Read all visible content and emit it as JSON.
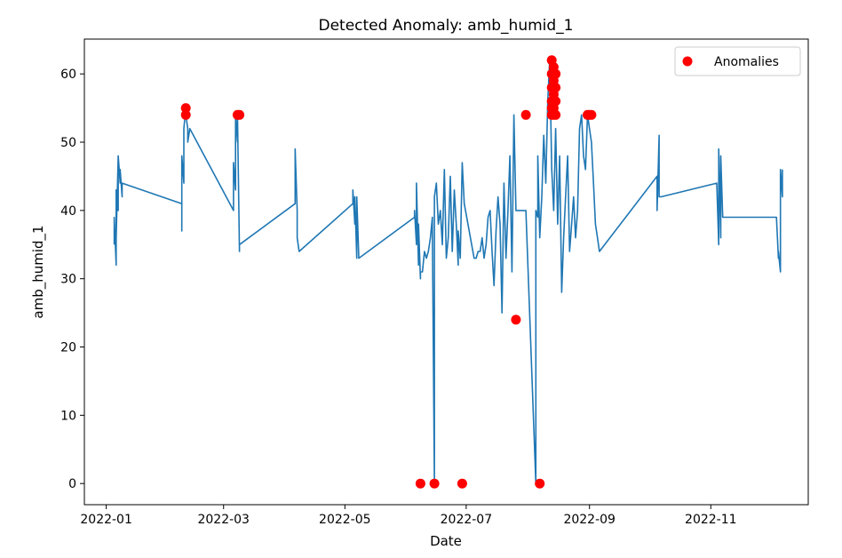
{
  "chart_data": {
    "type": "line",
    "title": "Detected Anomaly: amb_humid_1",
    "xlabel": "Date",
    "ylabel": "amb_humid_1",
    "xlim": [
      "2021-12-21",
      "2022-12-20"
    ],
    "ylim": [
      -3.1,
      65.1
    ],
    "x_ticks": [
      "2022-01-01",
      "2022-03-01",
      "2022-05-01",
      "2022-07-01",
      "2022-09-01",
      "2022-11-01"
    ],
    "x_tick_labels": [
      "2022-01",
      "2022-03",
      "2022-05",
      "2022-07",
      "2022-09",
      "2022-11"
    ],
    "y_ticks": [
      0,
      10,
      20,
      30,
      40,
      50,
      60
    ],
    "grid": false,
    "legend": {
      "position": "top-right",
      "entries": [
        "Anomalies"
      ]
    },
    "colors": {
      "line": "#1f77b4",
      "anomaly": "#ff0000"
    },
    "series": [
      {
        "type": "line",
        "x": [
          "2022-01-05",
          "2022-01-05",
          "2022-01-06",
          "2022-01-06",
          "2022-01-06",
          "2022-01-07",
          "2022-01-07",
          "2022-01-07",
          "2022-01-08",
          "2022-01-08",
          "2022-01-09",
          "2022-01-09",
          "2022-02-08",
          "2022-02-08",
          "2022-02-08",
          "2022-02-09",
          "2022-02-09",
          "2022-02-10",
          "2022-02-10",
          "2022-02-11",
          "2022-02-11",
          "2022-02-12",
          "2022-03-06",
          "2022-03-06",
          "2022-03-07",
          "2022-03-07",
          "2022-03-08",
          "2022-03-08",
          "2022-03-09",
          "2022-03-09",
          "2022-04-06",
          "2022-04-06",
          "2022-04-07",
          "2022-04-07",
          "2022-04-08",
          "2022-05-05",
          "2022-05-05",
          "2022-05-06",
          "2022-05-06",
          "2022-05-07",
          "2022-05-07",
          "2022-05-08",
          "2022-06-05",
          "2022-06-05",
          "2022-06-06",
          "2022-06-06",
          "2022-06-07",
          "2022-06-07",
          "2022-06-08",
          "2022-06-08",
          "2022-06-09",
          "2022-06-10",
          "2022-06-11",
          "2022-06-12",
          "2022-06-13",
          "2022-06-14",
          "2022-06-14",
          "2022-06-15",
          "2022-06-15",
          "2022-06-16",
          "2022-06-17",
          "2022-06-18",
          "2022-06-19",
          "2022-06-20",
          "2022-06-21",
          "2022-06-22",
          "2022-06-23",
          "2022-06-24",
          "2022-06-25",
          "2022-06-26",
          "2022-06-27",
          "2022-06-27",
          "2022-06-28",
          "2022-06-29",
          "2022-06-30",
          "2022-07-05",
          "2022-07-06",
          "2022-07-07",
          "2022-07-08",
          "2022-07-09",
          "2022-07-10",
          "2022-07-11",
          "2022-07-12",
          "2022-07-13",
          "2022-07-14",
          "2022-07-15",
          "2022-07-16",
          "2022-07-17",
          "2022-07-18",
          "2022-07-19",
          "2022-07-20",
          "2022-07-21",
          "2022-07-22",
          "2022-07-23",
          "2022-07-24",
          "2022-07-25",
          "2022-07-26",
          "2022-07-27",
          "2022-07-28",
          "2022-07-29",
          "2022-07-30",
          "2022-07-31",
          "2022-08-05",
          "2022-08-05",
          "2022-08-06",
          "2022-08-06",
          "2022-08-07",
          "2022-08-08",
          "2022-08-09",
          "2022-08-10",
          "2022-08-11",
          "2022-08-12",
          "2022-08-13",
          "2022-08-14",
          "2022-08-15",
          "2022-08-16",
          "2022-08-17",
          "2022-08-18",
          "2022-08-19",
          "2022-08-20",
          "2022-08-21",
          "2022-08-22",
          "2022-08-23",
          "2022-08-24",
          "2022-08-25",
          "2022-08-26",
          "2022-08-27",
          "2022-08-28",
          "2022-08-29",
          "2022-08-30",
          "2022-08-31",
          "2022-09-01",
          "2022-09-02",
          "2022-09-03",
          "2022-09-04",
          "2022-09-05",
          "2022-09-06",
          "2022-10-05",
          "2022-10-05",
          "2022-10-06",
          "2022-10-06",
          "2022-10-07",
          "2022-11-04",
          "2022-11-05",
          "2022-11-05",
          "2022-11-06",
          "2022-11-06",
          "2022-11-07",
          "2022-12-04",
          "2022-12-05",
          "2022-12-05",
          "2022-12-06",
          "2022-12-06",
          "2022-12-07",
          "2022-12-07"
        ],
        "y": [
          35,
          39,
          32,
          43,
          36,
          48,
          40,
          48,
          44,
          46,
          42,
          44,
          41,
          37,
          48,
          44,
          52,
          55,
          54,
          52,
          50,
          52,
          40,
          47,
          43,
          54,
          50,
          54,
          34,
          35,
          41,
          49,
          40,
          36,
          34,
          41,
          43,
          38,
          42,
          33,
          42,
          33,
          39,
          40,
          35,
          44,
          32,
          38,
          30,
          31,
          31,
          34,
          33,
          34,
          36,
          39,
          37,
          0,
          42,
          44,
          38,
          40,
          35,
          46,
          33,
          36,
          45,
          34,
          43,
          38,
          32,
          37,
          33,
          47,
          41,
          33,
          33,
          34,
          34,
          36,
          33,
          35,
          39,
          40,
          34,
          29,
          37,
          42,
          38,
          25,
          44,
          33,
          40,
          48,
          31,
          54,
          40,
          40,
          40,
          40,
          40,
          40,
          0,
          40,
          39,
          48,
          36,
          42,
          51,
          44,
          56,
          62,
          46,
          40,
          52,
          38,
          48,
          28,
          36,
          42,
          48,
          34,
          38,
          42,
          36,
          40,
          52,
          54,
          48,
          46,
          54,
          52,
          50,
          44,
          38,
          36,
          34,
          45,
          40,
          51,
          42,
          42,
          44,
          35,
          49,
          36,
          48,
          39,
          39,
          33,
          34,
          31,
          46,
          42,
          46
        ],
        "_note": "line values is best-effort reconstruction"
      },
      {
        "type": "scatter",
        "name": "Anomalies",
        "x": [
          "2022-02-10",
          "2022-02-10",
          "2022-03-08",
          "2022-03-09",
          "2022-06-08",
          "2022-06-15",
          "2022-06-29",
          "2022-07-26",
          "2022-07-31",
          "2022-08-07",
          "2022-08-13",
          "2022-08-13",
          "2022-08-13",
          "2022-08-13",
          "2022-08-13",
          "2022-08-13",
          "2022-08-14",
          "2022-08-14",
          "2022-08-14",
          "2022-08-14",
          "2022-08-14",
          "2022-08-14",
          "2022-08-14",
          "2022-08-15",
          "2022-08-15",
          "2022-08-15",
          "2022-08-15",
          "2022-08-31",
          "2022-09-01",
          "2022-09-02"
        ],
        "y": [
          55,
          54,
          54,
          54,
          0,
          0,
          0,
          24,
          54,
          0,
          62,
          60,
          58,
          56,
          55,
          54,
          61,
          59,
          57,
          55,
          54,
          58,
          56,
          60,
          58,
          56,
          54,
          54,
          54,
          54
        ]
      }
    ]
  }
}
